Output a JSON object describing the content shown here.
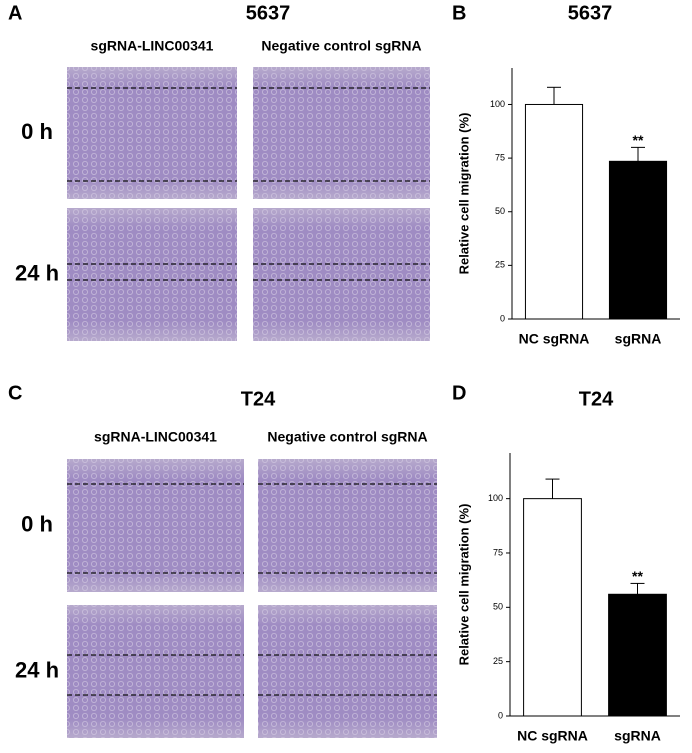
{
  "panels": [
    {
      "letter": "A",
      "title": "5637",
      "columns": [
        "sgRNA-LINC00341",
        "Negative control sgRNA"
      ],
      "rows": [
        "0 h",
        "24 h"
      ]
    },
    {
      "letter": "C",
      "title": "T24",
      "columns": [
        "sgRNA-LINC00341",
        "Negative control sgRNA"
      ],
      "rows": [
        "0 h",
        "24 h"
      ]
    }
  ],
  "chart_data": [
    {
      "type": "bar",
      "letter": "B",
      "title": "5637",
      "y_label": "Relative cell migration (%)",
      "categories": [
        "NC sgRNA",
        "sgRNA"
      ],
      "values": [
        100,
        73.5
      ],
      "errors": [
        8,
        6.5
      ],
      "colors": [
        "#ffffff",
        "#000000"
      ],
      "annotation": "**",
      "ylim": [
        0,
        117
      ],
      "yticks": [
        0,
        25,
        50,
        75,
        100
      ]
    },
    {
      "type": "bar",
      "letter": "D",
      "title": "T24",
      "y_label": "Relative cell migration (%)",
      "categories": [
        "NC sgRNA",
        "sgRNA"
      ],
      "values": [
        100,
        56
      ],
      "errors": [
        9,
        5
      ],
      "colors": [
        "#ffffff",
        "#000000"
      ],
      "annotation": "**",
      "ylim": [
        0,
        121
      ],
      "yticks": [
        0,
        25,
        50,
        75,
        100
      ]
    }
  ]
}
